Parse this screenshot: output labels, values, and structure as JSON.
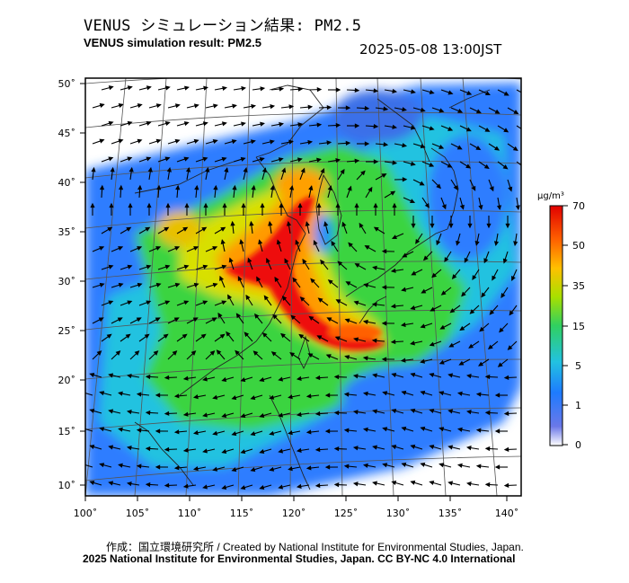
{
  "header": {
    "title_jp": "VENUS シミュレーション結果: PM2.5",
    "title_en": "VENUS simulation result: PM2.5",
    "timestamp": "2025-05-08 13:00JST"
  },
  "map": {
    "lat_labels": [
      "50˚",
      "45˚",
      "40˚",
      "35˚",
      "30˚",
      "25˚",
      "20˚",
      "15˚",
      "10˚"
    ],
    "lon_labels": [
      "100˚",
      "105˚",
      "110˚",
      "115˚",
      "120˚",
      "125˚",
      "130˚",
      "135˚",
      "140˚"
    ],
    "wind_vectors": "arrow-field-icon"
  },
  "colorbar": {
    "unit": "μg/m³",
    "tick_labels": [
      "70",
      "50",
      "35",
      "15",
      "5",
      "1",
      "0"
    ],
    "colors": [
      "#ffffff",
      "#5a6fe0",
      "#1a8cff",
      "#26c7d8",
      "#3ad43a",
      "#c8e000",
      "#ffb000",
      "#ff5a00",
      "#e00000"
    ]
  },
  "footer": {
    "credit": "作成：国立環境研究所 / Created by National Institute for Environmental Studies, Japan.",
    "copyright": "2025 National Institute for Environmental Studies, Japan. CC BY-NC 4.0 International"
  }
}
